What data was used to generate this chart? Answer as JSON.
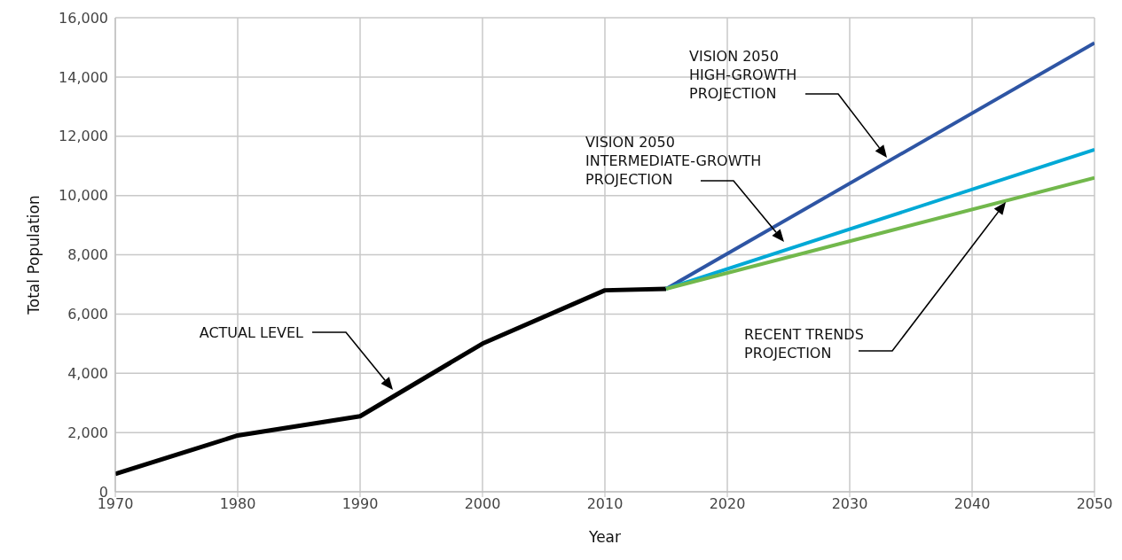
{
  "chart_data": {
    "type": "line",
    "xlabel": "Year",
    "ylabel": "Total Population",
    "xlim": [
      1970,
      2050
    ],
    "xticks": [
      1970,
      1980,
      1990,
      2000,
      2010,
      2020,
      2030,
      2040,
      2050
    ],
    "ylim": [
      0,
      16000
    ],
    "yticks": [
      {
        "value": 0,
        "label": "0"
      },
      {
        "value": 2000,
        "label": "2,000"
      },
      {
        "value": 4000,
        "label": "4,000"
      },
      {
        "value": 6000,
        "label": "6,000"
      },
      {
        "value": 8000,
        "label": "8,000"
      },
      {
        "value": 10000,
        "label": "10,000"
      },
      {
        "value": 12000,
        "label": "12,000"
      },
      {
        "value": 14000,
        "label": "14,000"
      },
      {
        "value": 16000,
        "label": "16,000"
      }
    ],
    "grid": true,
    "line_style": "solid",
    "marker": "none",
    "series": [
      {
        "color": "#000000",
        "x": [
          1970,
          1980,
          1990,
          2000,
          2010,
          2015
        ],
        "values": [
          600,
          1900,
          2550,
          5000,
          6800,
          6850
        ]
      },
      {
        "color": "#2e55a4",
        "x": [
          2015,
          2050
        ],
        "values": [
          6850,
          15150
        ]
      },
      {
        "color": "#00a9d6",
        "x": [
          2015,
          2050
        ],
        "values": [
          6850,
          11550
        ]
      },
      {
        "color": "#72b84c",
        "x": [
          2015,
          2050
        ],
        "values": [
          6850,
          10600
        ]
      }
    ],
    "annotations": [
      "ACTUAL LEVEL",
      "VISION 2050\nHIGH-GROWTH\nPROJECTION",
      "VISION 2050\nINTERMEDIATE-GROWTH\nPROJECTION",
      "RECENT TRENDS\nPROJECTION"
    ]
  }
}
